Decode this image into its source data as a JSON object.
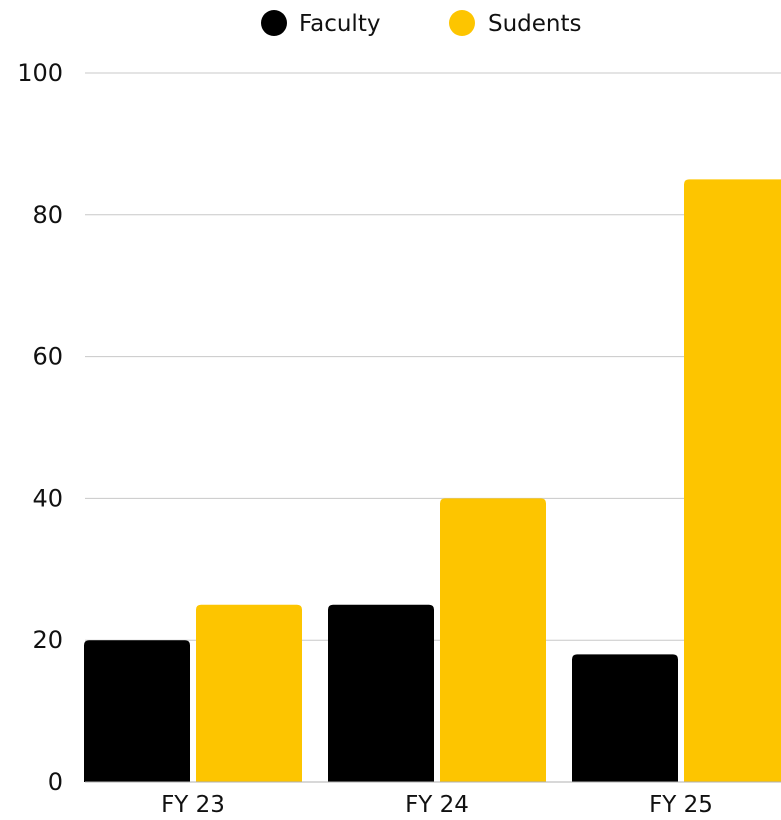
{
  "chart_data": {
    "type": "bar",
    "title": "",
    "xlabel": "",
    "ylabel": "",
    "categories": [
      "FY 23",
      "FY 24",
      "FY 25"
    ],
    "series": [
      {
        "name": "Faculty",
        "color": "#000000",
        "values": [
          20,
          25,
          18
        ]
      },
      {
        "name": "Sudents",
        "color": "#FDC500",
        "values": [
          25,
          40,
          85
        ]
      }
    ],
    "ylim": [
      0,
      100
    ],
    "yticks": [
      0,
      20,
      40,
      60,
      80,
      100
    ],
    "grid": true,
    "legend_position": "top-center"
  }
}
